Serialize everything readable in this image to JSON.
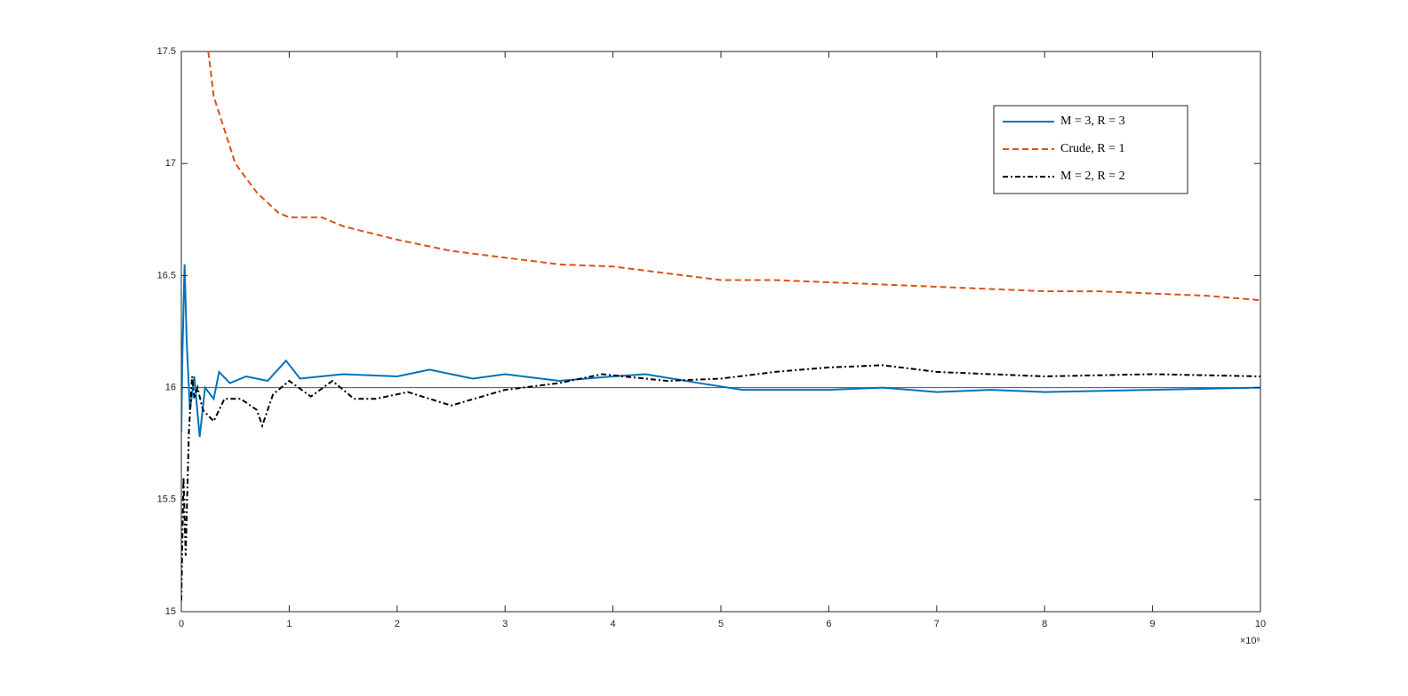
{
  "chart_data": {
    "type": "line",
    "xlim": [
      0,
      10
    ],
    "xticks": [
      0,
      1,
      2,
      3,
      4,
      5,
      6,
      7,
      8,
      9,
      10
    ],
    "ylim": [
      15,
      17.5
    ],
    "yticks": [
      15,
      15.5,
      16,
      16.5,
      17,
      17.5
    ],
    "x_scale_label": "×10⁶",
    "reference_line": {
      "value": 16,
      "color": "#7e2f8e"
    },
    "series": [
      {
        "name": "M = 3, R = 3",
        "color": "#0072bd",
        "dash": "solid",
        "x": [
          0,
          0.01,
          0.03,
          0.05,
          0.08,
          0.12,
          0.17,
          0.22,
          0.3,
          0.35,
          0.45,
          0.6,
          0.8,
          0.97,
          1.1,
          1.5,
          2,
          2.3,
          2.7,
          3,
          3.5,
          4,
          4.3,
          4.8,
          5.2,
          6,
          6.5,
          7,
          7.5,
          8,
          9,
          10
        ],
        "values": [
          15.8,
          16.15,
          16.55,
          16.2,
          15.9,
          16.05,
          15.78,
          16.0,
          15.95,
          16.07,
          16.02,
          16.05,
          16.03,
          16.12,
          16.04,
          16.06,
          16.05,
          16.08,
          16.04,
          16.06,
          16.03,
          16.05,
          16.06,
          16.02,
          15.99,
          15.99,
          16.0,
          15.98,
          15.99,
          15.98,
          15.99,
          16.0
        ]
      },
      {
        "name": "Crude, R = 1",
        "color": "#d95319",
        "dash": "dashed",
        "x": [
          0.25,
          0.3,
          0.4,
          0.5,
          0.7,
          0.9,
          1.0,
          1.3,
          1.5,
          2,
          2.5,
          3,
          3.5,
          4,
          4.5,
          5,
          5.5,
          6,
          6.5,
          7,
          7.5,
          8,
          8.5,
          9,
          9.5,
          10
        ],
        "values": [
          17.5,
          17.3,
          17.15,
          17.0,
          16.87,
          16.78,
          16.76,
          16.76,
          16.72,
          16.66,
          16.61,
          16.58,
          16.55,
          16.54,
          16.51,
          16.48,
          16.48,
          16.47,
          16.46,
          16.45,
          16.44,
          16.43,
          16.43,
          16.42,
          16.41,
          16.39
        ]
      },
      {
        "name": "M = 2, R = 2",
        "color": "#000000",
        "dash": "dashdot",
        "x": [
          0,
          0.02,
          0.04,
          0.07,
          0.1,
          0.12,
          0.15,
          0.2,
          0.3,
          0.4,
          0.55,
          0.7,
          0.75,
          0.85,
          1.0,
          1.2,
          1.4,
          1.6,
          1.8,
          2.1,
          2.5,
          3,
          3.5,
          3.9,
          4.5,
          5,
          5.5,
          6,
          6.5,
          7,
          7.5,
          8,
          9,
          10
        ],
        "values": [
          15.05,
          15.6,
          15.25,
          15.8,
          16.05,
          15.95,
          16.0,
          15.9,
          15.85,
          15.95,
          15.95,
          15.9,
          15.83,
          15.97,
          16.03,
          15.96,
          16.03,
          15.95,
          15.95,
          15.98,
          15.92,
          15.99,
          16.02,
          16.06,
          16.03,
          16.04,
          16.07,
          16.09,
          16.1,
          16.07,
          16.06,
          16.05,
          16.06,
          16.05
        ]
      }
    ]
  }
}
